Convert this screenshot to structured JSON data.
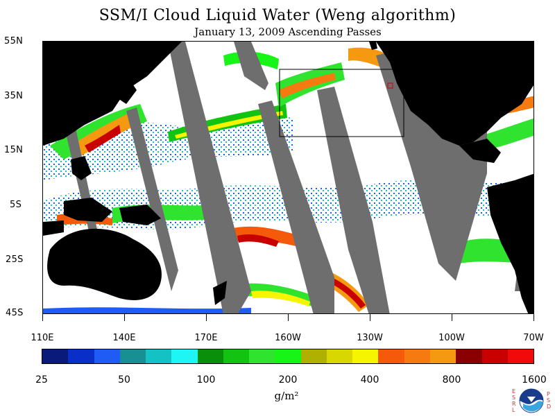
{
  "header": {
    "title": "SSM/I Cloud Liquid Water (Weng algorithm)",
    "subtitle": "January 13, 2009  Ascending Passes"
  },
  "map": {
    "latitude_labels": [
      "55N",
      "35N",
      "15N",
      "5S",
      "25S",
      "45S"
    ],
    "longitude_labels": [
      "110E",
      "140E",
      "170E",
      "160W",
      "130W",
      "100W",
      "70W"
    ],
    "colors": {
      "land": "#000000",
      "no_data_swath_gap": "#6e6e6e",
      "background": "#ffffff",
      "region_box": "#000000",
      "marker_box": "#d00000"
    }
  },
  "colorbar": {
    "colors": [
      "#0a1a7a",
      "#0a2ec8",
      "#1f5cf5",
      "#178f93",
      "#14c2c4",
      "#1ef5f5",
      "#0a8f0a",
      "#12c312",
      "#2fe32f",
      "#16f516",
      "#b0b000",
      "#d8d800",
      "#f5f500",
      "#f55a0a",
      "#f57a10",
      "#f59a10",
      "#8a0000",
      "#c80000",
      "#f00a0a"
    ],
    "tick_labels": [
      "25",
      "50",
      "100",
      "200",
      "400",
      "800",
      "1600"
    ],
    "units": "g/m²"
  },
  "logo": {
    "left_letters": "ESRL",
    "right_letters": "PSD",
    "name": "noaa-logo"
  }
}
